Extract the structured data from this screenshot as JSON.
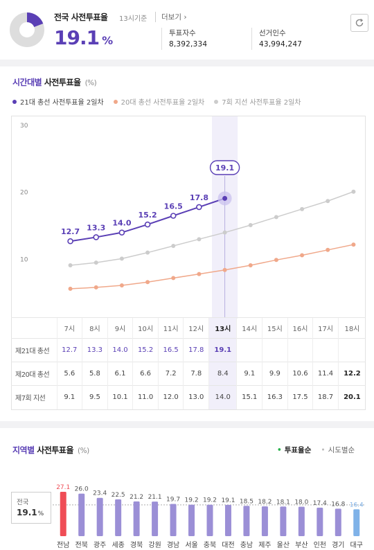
{
  "summary": {
    "title": "전국 사전투표율",
    "time_basis": "13시기준",
    "more_label": "더보기 ›",
    "rate": "19.1",
    "rate_unit": "%",
    "rate_fraction": 0.191,
    "voters_label": "투표자수",
    "voters_value": "8,392,334",
    "electorate_label": "선거인수",
    "electorate_value": "43,994,247",
    "refresh_icon": "refresh-icon",
    "colors": {
      "accent": "#5a3fb5",
      "track": "#dddddd"
    }
  },
  "hourly": {
    "title_accent": "시간대별",
    "title_rest": " 사전투표율",
    "unit": "(%)",
    "legend": [
      {
        "label": "21대 총선 사전투표율 2일차",
        "color": "#5a3fb5"
      },
      {
        "label": "20대 총선 사전투표율 2일차",
        "color": "#f0a88a"
      },
      {
        "label": "7회 지선 사전투표율 2일차",
        "color": "#cccccc"
      }
    ],
    "table": {
      "hours": [
        "7시",
        "8시",
        "9시",
        "10시",
        "11시",
        "12시",
        "13시",
        "14시",
        "15시",
        "16시",
        "17시",
        "18시"
      ],
      "rows": [
        {
          "label": "제21대 총선",
          "values": [
            "12.7",
            "13.3",
            "14.0",
            "15.2",
            "16.5",
            "17.8",
            "19.1",
            "",
            "",
            "",
            "",
            ""
          ]
        },
        {
          "label": "제20대 총선",
          "values": [
            "5.6",
            "5.8",
            "6.1",
            "6.6",
            "7.2",
            "7.8",
            "8.4",
            "9.1",
            "9.9",
            "10.6",
            "11.4",
            "12.2"
          ]
        },
        {
          "label": "제7회 지선",
          "values": [
            "9.1",
            "9.5",
            "10.1",
            "11.0",
            "12.0",
            "13.0",
            "14.0",
            "15.1",
            "16.3",
            "17.5",
            "18.7",
            "20.1"
          ]
        }
      ]
    }
  },
  "chart_data": [
    {
      "type": "line",
      "x": [
        "7시",
        "8시",
        "9시",
        "10시",
        "11시",
        "12시",
        "13시",
        "14시",
        "15시",
        "16시",
        "17시",
        "18시"
      ],
      "ylim": [
        0,
        30
      ],
      "yticks": [
        10,
        20,
        30
      ],
      "highlight_x": "13시",
      "highlight_label": "19.1",
      "series": [
        {
          "name": "21대 총선 사전투표율 2일차",
          "values": [
            12.7,
            13.3,
            14.0,
            15.2,
            16.5,
            17.8,
            19.1,
            null,
            null,
            null,
            null,
            null
          ],
          "color": "#5a3fb5"
        },
        {
          "name": "20대 총선 사전투표율 2일차",
          "values": [
            5.6,
            5.8,
            6.1,
            6.6,
            7.2,
            7.8,
            8.4,
            9.1,
            9.9,
            10.6,
            11.4,
            12.2
          ],
          "color": "#f0a88a"
        },
        {
          "name": "7회 지선 사전투표율 2일차",
          "values": [
            9.1,
            9.5,
            10.1,
            11.0,
            12.0,
            13.0,
            14.0,
            15.1,
            16.3,
            17.5,
            18.7,
            20.1
          ],
          "color": "#cccccc"
        }
      ]
    },
    {
      "type": "bar",
      "categories": [
        "전남",
        "전북",
        "광주",
        "세종",
        "경북",
        "강원",
        "경남",
        "서울",
        "충북",
        "대전",
        "충남",
        "제주",
        "울산",
        "부산",
        "인천",
        "경기",
        "대구"
      ],
      "values": [
        27.1,
        26.0,
        23.4,
        22.5,
        21.2,
        21.1,
        19.7,
        19.2,
        19.2,
        19.1,
        18.5,
        18.2,
        18.1,
        18.0,
        17.4,
        16.8,
        16.4
      ],
      "reference": 19.1,
      "colors": {
        "max": "#ef4d56",
        "default": "#9b8fd6",
        "min": "#7fb2e8",
        "reference_line": "#aaaaaa"
      }
    }
  ],
  "regional": {
    "title_accent": "지역별",
    "title_rest": " 사전투표율",
    "unit": "(%)",
    "tab_rate": "투표율순",
    "tab_region": "시도별순",
    "national_label": "전국",
    "national_value": "19.1",
    "national_unit": "%"
  }
}
